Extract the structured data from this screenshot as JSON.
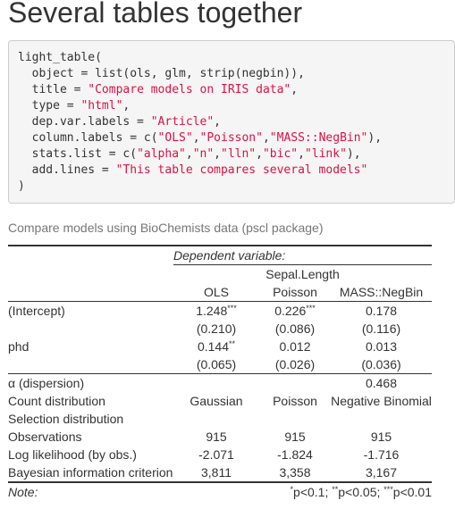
{
  "page": {
    "heading": "Several tables together"
  },
  "code": {
    "lines": [
      [
        {
          "t": "light_table("
        }
      ],
      [
        {
          "t": "  object = list(ols, glm, strip(negbin)),"
        }
      ],
      [
        {
          "t": "  title = "
        },
        {
          "t": "\"Compare models on IRIS data\"",
          "s": true
        },
        {
          "t": ","
        }
      ],
      [
        {
          "t": "  type = "
        },
        {
          "t": "\"html\"",
          "s": true
        },
        {
          "t": ","
        }
      ],
      [
        {
          "t": "  dep.var.labels = "
        },
        {
          "t": "\"Article\"",
          "s": true
        },
        {
          "t": ","
        }
      ],
      [
        {
          "t": "  column.labels = c("
        },
        {
          "t": "\"OLS\"",
          "s": true
        },
        {
          "t": ","
        },
        {
          "t": "\"Poisson\"",
          "s": true
        },
        {
          "t": ","
        },
        {
          "t": "\"MASS::NegBin\"",
          "s": true
        },
        {
          "t": "),"
        }
      ],
      [
        {
          "t": "  stats.list = c("
        },
        {
          "t": "\"alpha\"",
          "s": true
        },
        {
          "t": ","
        },
        {
          "t": "\"n\"",
          "s": true
        },
        {
          "t": ","
        },
        {
          "t": "\"lln\"",
          "s": true
        },
        {
          "t": ","
        },
        {
          "t": "\"bic\"",
          "s": true
        },
        {
          "t": ","
        },
        {
          "t": "\"link\"",
          "s": true
        },
        {
          "t": "),"
        }
      ],
      [
        {
          "t": "  add.lines = "
        },
        {
          "t": "\"This table compares several models\"",
          "s": true
        }
      ],
      [
        {
          "t": ")"
        }
      ]
    ]
  },
  "table": {
    "caption": "Compare models using BioChemists data (pscl package)",
    "dep_var_header": "Dependent variable:",
    "dep_var": "Sepal.Length",
    "columns": [
      "OLS",
      "Poisson",
      "MASS::NegBin"
    ],
    "rows": [
      {
        "label": "(Intercept)",
        "cells": [
          {
            "v": "1.248",
            "sup": "***"
          },
          {
            "v": "0.226",
            "sup": "***"
          },
          {
            "v": "0.178",
            "sup": ""
          }
        ]
      },
      {
        "label": "",
        "cells": [
          {
            "v": "(0.210)",
            "sup": ""
          },
          {
            "v": "(0.086)",
            "sup": ""
          },
          {
            "v": "(0.116)",
            "sup": ""
          }
        ]
      },
      {
        "label": "phd",
        "cells": [
          {
            "v": "0.144",
            "sup": "**"
          },
          {
            "v": "0.012",
            "sup": ""
          },
          {
            "v": "0.013",
            "sup": ""
          }
        ]
      },
      {
        "label": "",
        "cells": [
          {
            "v": "(0.065)",
            "sup": ""
          },
          {
            "v": "(0.026)",
            "sup": ""
          },
          {
            "v": "(0.036)",
            "sup": ""
          }
        ]
      }
    ],
    "stats": [
      {
        "label": "α (dispersion)",
        "cells": [
          "",
          "",
          "0.468"
        ]
      },
      {
        "label": "Count distribution",
        "cells": [
          "Gaussian",
          "Poisson",
          "Negative Binomial"
        ]
      },
      {
        "label": "Selection distribution",
        "cells": [
          "",
          "",
          ""
        ]
      },
      {
        "label": "Observations",
        "cells": [
          "915",
          "915",
          "915"
        ]
      },
      {
        "label": "Log likelihood (by obs.)",
        "cells": [
          "-2.071",
          "-1.824",
          "-1.716"
        ]
      },
      {
        "label": "Bayesian information criterion",
        "cells": [
          "3,811",
          "3,358",
          "3,167"
        ]
      }
    ],
    "note_label": "Note:",
    "note_parts": [
      {
        "sup": "*",
        "text": "p<0.1; "
      },
      {
        "sup": "**",
        "text": "p<0.05; "
      },
      {
        "sup": "***",
        "text": "p<0.01"
      }
    ]
  }
}
